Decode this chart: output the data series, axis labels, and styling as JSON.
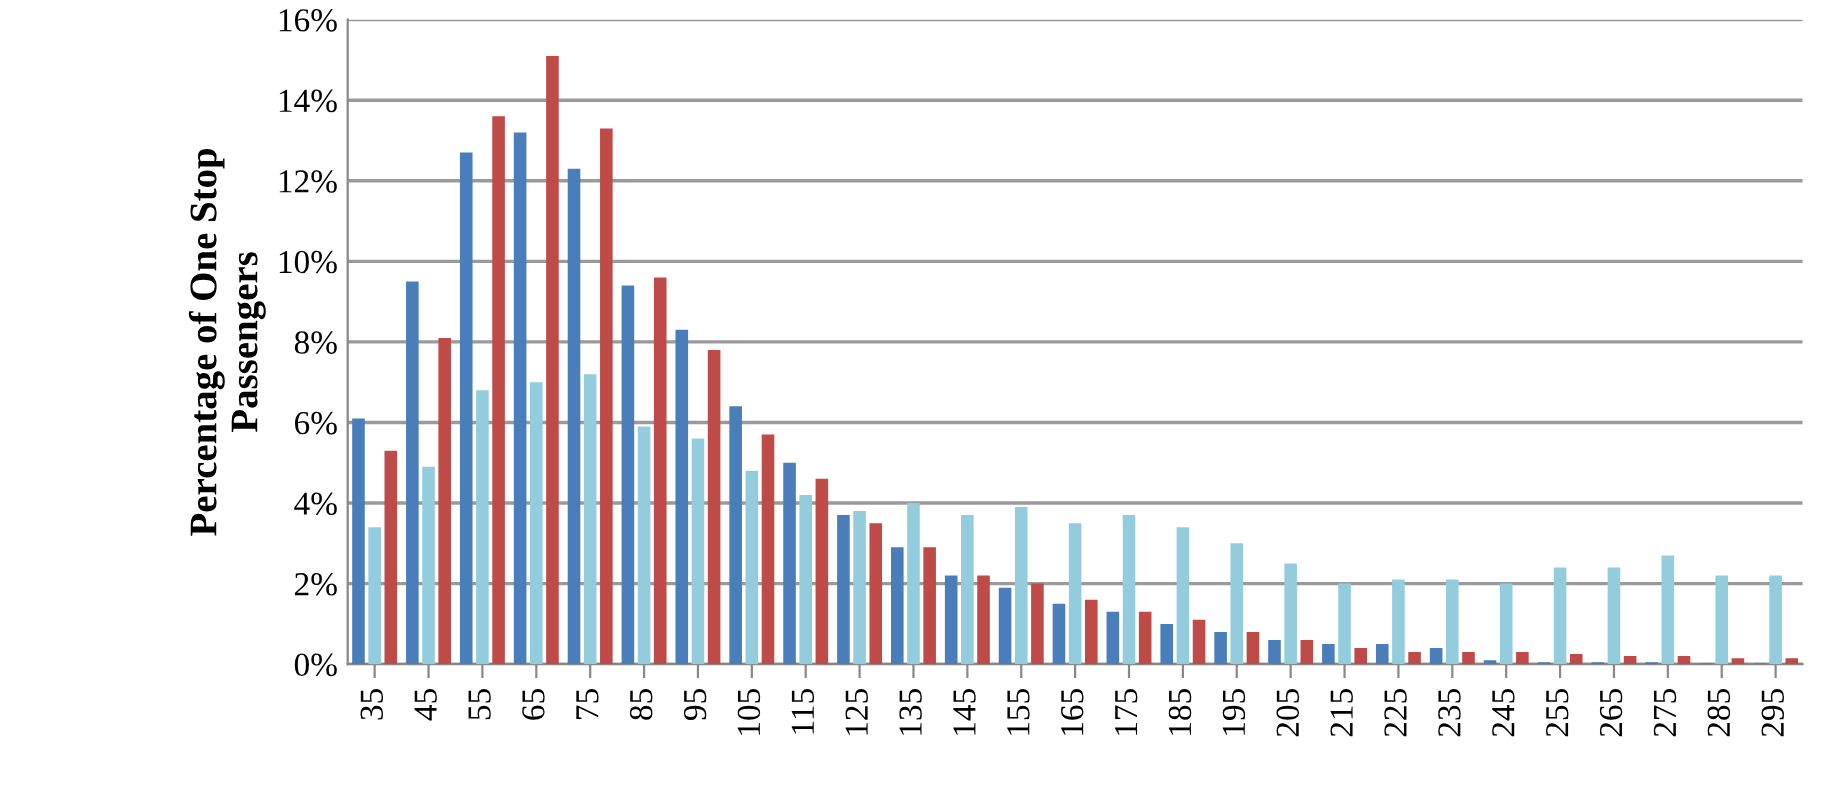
{
  "chart_data": {
    "type": "bar",
    "ylabel": "Percentage of One Stop\nPassengers",
    "categories": [
      "35",
      "45",
      "55",
      "65",
      "75",
      "85",
      "95",
      "105",
      "115",
      "125",
      "135",
      "145",
      "155",
      "165",
      "175",
      "185",
      "195",
      "205",
      "215",
      "225",
      "235",
      "245",
      "255",
      "265",
      "275",
      "285",
      "295"
    ],
    "series": [
      {
        "color": "#4a7ebb",
        "values": [
          6.1,
          9.5,
          12.7,
          13.2,
          12.3,
          9.4,
          8.3,
          6.4,
          5.0,
          3.7,
          2.9,
          2.2,
          1.9,
          1.5,
          1.3,
          1.0,
          0.8,
          0.6,
          0.5,
          0.5,
          0.4,
          0.1,
          0.05,
          0.05,
          0.05,
          0.02,
          0.02
        ]
      },
      {
        "color": "#93cddd",
        "values": [
          3.4,
          4.9,
          6.8,
          7.0,
          7.2,
          5.9,
          5.6,
          4.8,
          4.2,
          3.8,
          4.0,
          3.7,
          3.9,
          3.5,
          3.7,
          3.4,
          3.0,
          2.5,
          2.0,
          2.1,
          2.1,
          2.0,
          2.4,
          2.4,
          2.7,
          2.2,
          2.2
        ]
      },
      {
        "color": "#be4b48",
        "values": [
          5.3,
          8.1,
          13.6,
          15.1,
          13.3,
          9.6,
          7.8,
          5.7,
          4.6,
          3.5,
          2.9,
          2.2,
          2.0,
          1.6,
          1.3,
          1.1,
          0.8,
          0.6,
          0.4,
          0.3,
          0.3,
          0.3,
          0.25,
          0.2,
          0.2,
          0.15,
          0.15
        ]
      }
    ],
    "ylim": [
      0,
      16
    ],
    "yticks": [
      {
        "value": 0,
        "label": "0%"
      },
      {
        "value": 2,
        "label": "2%"
      },
      {
        "value": 4,
        "label": "4%"
      },
      {
        "value": 6,
        "label": "6%"
      },
      {
        "value": 8,
        "label": "8%"
      },
      {
        "value": 10,
        "label": "10%"
      },
      {
        "value": 12,
        "label": "12%"
      },
      {
        "value": 14,
        "label": "14%"
      },
      {
        "value": 16,
        "label": "16%"
      }
    ],
    "grid": "y"
  }
}
